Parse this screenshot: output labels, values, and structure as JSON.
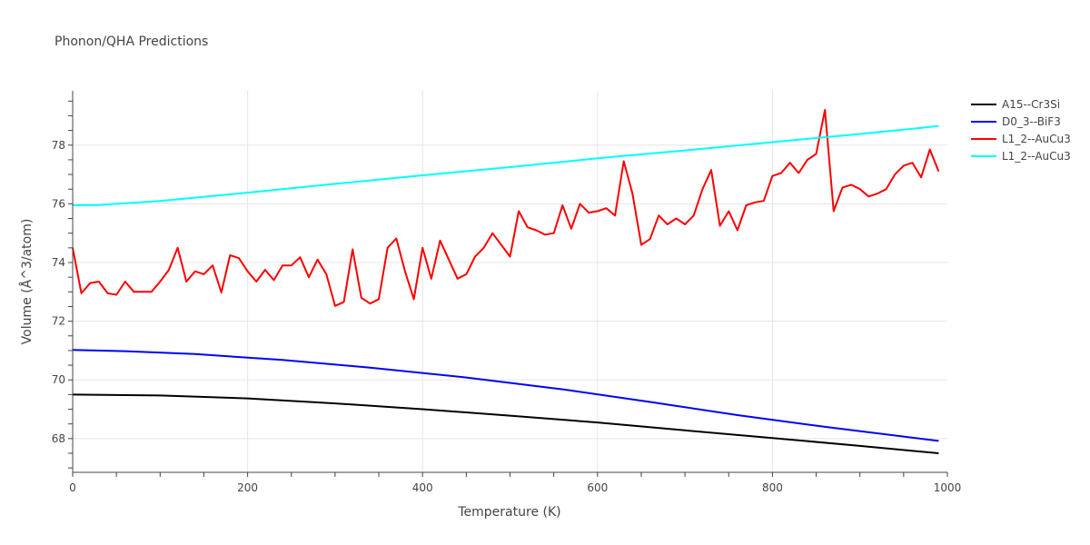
{
  "chart_data": {
    "type": "line",
    "title": "Phonon/QHA Predictions",
    "xlabel": "Temperature (K)",
    "ylabel": "Volume (Å^3/atom)",
    "xlim": [
      0,
      1000
    ],
    "ylim": [
      66.85,
      79.85
    ],
    "x_ticks": [
      0,
      200,
      400,
      600,
      800,
      1000
    ],
    "y_ticks": [
      68,
      70,
      72,
      74,
      76,
      78
    ],
    "grid": true,
    "legend_position": "top-right",
    "series": [
      {
        "name": "A15--Cr3Si",
        "color": "#000000",
        "x": [
          0,
          100,
          200,
          300,
          400,
          500,
          600,
          700,
          800,
          900,
          990
        ],
        "y": [
          69.5,
          69.47,
          69.37,
          69.2,
          69.0,
          68.78,
          68.55,
          68.28,
          68.02,
          67.75,
          67.5
        ]
      },
      {
        "name": "D0_3--BiF3",
        "color": "#0000ff",
        "x": [
          0,
          60,
          140,
          240,
          340,
          450,
          560,
          660,
          760,
          860,
          990
        ],
        "y": [
          71.02,
          70.98,
          70.88,
          70.68,
          70.42,
          70.08,
          69.68,
          69.25,
          68.8,
          68.4,
          67.92
        ]
      },
      {
        "name": "L1_2--AuCu3",
        "color": "#ff0000",
        "x": [
          0,
          10,
          20,
          30,
          40,
          50,
          60,
          70,
          80,
          90,
          100,
          110,
          120,
          130,
          140,
          150,
          160,
          170,
          180,
          190,
          200,
          210,
          220,
          230,
          240,
          250,
          260,
          270,
          280,
          290,
          300,
          310,
          320,
          330,
          340,
          350,
          360,
          370,
          380,
          390,
          400,
          410,
          420,
          430,
          440,
          450,
          460,
          470,
          480,
          490,
          500,
          510,
          520,
          530,
          540,
          550,
          560,
          570,
          580,
          590,
          600,
          610,
          620,
          630,
          640,
          650,
          660,
          670,
          680,
          690,
          700,
          710,
          720,
          730,
          740,
          750,
          760,
          770,
          780,
          790,
          800,
          810,
          820,
          830,
          840,
          850,
          860,
          870,
          880,
          890,
          900,
          910,
          920,
          930,
          940,
          950,
          960,
          970,
          980,
          990
        ],
        "y": [
          74.5,
          72.95,
          73.3,
          73.35,
          72.95,
          72.9,
          73.35,
          73.0,
          73.0,
          73.0,
          73.35,
          73.75,
          74.5,
          73.35,
          73.7,
          73.6,
          73.9,
          72.98,
          74.25,
          74.15,
          73.7,
          73.35,
          73.75,
          73.4,
          73.9,
          73.9,
          74.18,
          73.5,
          74.1,
          73.6,
          72.52,
          72.65,
          74.45,
          72.8,
          72.6,
          72.75,
          74.5,
          74.82,
          73.7,
          72.75,
          74.5,
          73.45,
          74.75,
          74.1,
          73.45,
          73.6,
          74.2,
          74.5,
          75.0,
          74.6,
          74.2,
          75.75,
          75.2,
          75.1,
          74.95,
          75.0,
          75.95,
          75.15,
          76.0,
          75.7,
          75.75,
          75.85,
          75.6,
          77.45,
          76.35,
          74.6,
          74.8,
          75.6,
          75.3,
          75.5,
          75.3,
          75.6,
          76.5,
          77.15,
          75.25,
          75.75,
          75.1,
          75.95,
          76.05,
          76.1,
          76.95,
          77.05,
          77.4,
          77.05,
          77.5,
          77.7,
          79.2,
          75.75,
          76.55,
          76.65,
          76.5,
          76.25,
          76.35,
          76.5,
          77.0,
          77.3,
          77.4,
          76.9,
          77.85,
          77.1
        ]
      },
      {
        "name": "L1_2--AuCu3",
        "color": "#00ffff",
        "x": [
          0,
          30,
          100,
          200,
          300,
          400,
          500,
          600,
          700,
          800,
          900,
          990
        ],
        "y": [
          75.95,
          75.96,
          76.1,
          76.38,
          76.68,
          76.97,
          77.25,
          77.55,
          77.82,
          78.1,
          78.38,
          78.65
        ]
      }
    ]
  }
}
